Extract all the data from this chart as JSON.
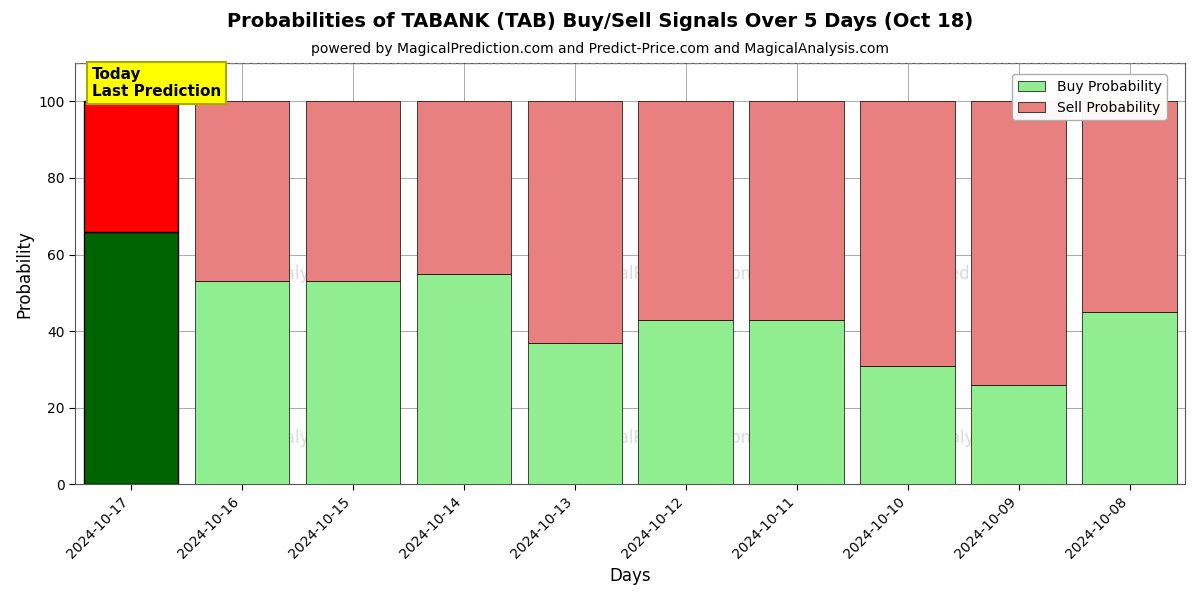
{
  "title": "Probabilities of TABANK (TAB) Buy/Sell Signals Over 5 Days (Oct 18)",
  "subtitle": "powered by MagicalPrediction.com and Predict-Price.com and MagicalAnalysis.com",
  "xlabel": "Days",
  "ylabel": "Probability",
  "dates": [
    "2024-10-17",
    "2024-10-16",
    "2024-10-15",
    "2024-10-14",
    "2024-10-13",
    "2024-10-12",
    "2024-10-11",
    "2024-10-10",
    "2024-10-09",
    "2024-10-08"
  ],
  "buy_values": [
    66,
    53,
    53,
    55,
    37,
    43,
    43,
    31,
    26,
    45
  ],
  "sell_values": [
    34,
    47,
    47,
    45,
    63,
    57,
    57,
    69,
    74,
    55
  ],
  "today_buy_color": "#006400",
  "today_sell_color": "#FF0000",
  "buy_color": "#90EE90",
  "sell_color": "#E88080",
  "today_label_bg": "#FFFF00",
  "today_label_text": "Today\nLast Prediction",
  "legend_buy": "Buy Probability",
  "legend_sell": "Sell Probability",
  "ylim_max": 110,
  "dashed_line_y": 110,
  "bar_edge_color": "#000000",
  "bar_linewidth": 0.5,
  "grid_color": "#aaaaaa",
  "fig_width": 12.0,
  "fig_height": 6.0,
  "dpi": 100,
  "bg_color": "#ffffff",
  "watermark_texts": [
    "calAnalysis.co",
    "MagicalPrediction.com",
    "calAnalysis.co",
    "MagicalPrediction.com"
  ],
  "yticks": [
    0,
    20,
    40,
    60,
    80,
    100
  ]
}
